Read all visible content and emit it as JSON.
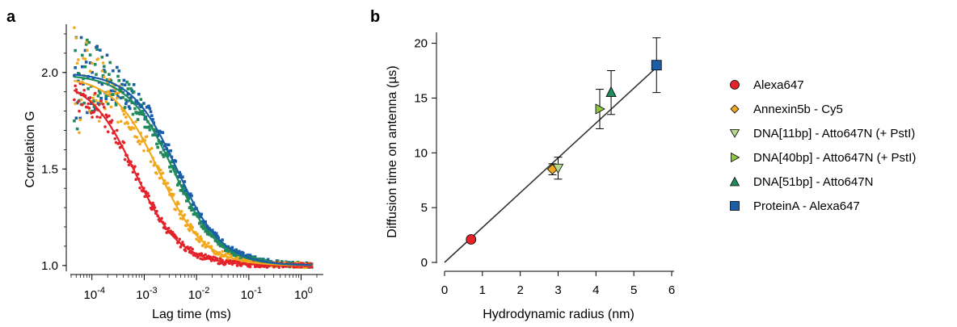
{
  "panel_a": {
    "letter": "a",
    "xlabel": "Lag time (ms)",
    "ylabel": "Correlation G",
    "xticks": [
      {
        "base": "10",
        "exp": "-4"
      },
      {
        "base": "10",
        "exp": "-3"
      },
      {
        "base": "10",
        "exp": "-2"
      },
      {
        "base": "10",
        "exp": "-1"
      },
      {
        "base": "10",
        "exp": "0"
      }
    ],
    "yticks": [
      "1.0",
      "1.5",
      "2.0"
    ]
  },
  "panel_b": {
    "letter": "b",
    "xlabel": "Hydrodynamic radius (nm)",
    "ylabel": "Diffusion time on antenna (µs)",
    "xticks": [
      "0",
      "1",
      "2",
      "3",
      "4",
      "5",
      "6"
    ],
    "yticks": [
      "0",
      "5",
      "10",
      "15",
      "20"
    ]
  },
  "chart_data": [
    {
      "type": "line",
      "xlabel": "Lag time (ms)",
      "ylabel": "Correlation G",
      "xscale": "log",
      "xlim": [
        4e-05,
        2
      ],
      "ylim": [
        0.97,
        2.25
      ],
      "grid": false,
      "series": [
        {
          "color": "#e3222a",
          "amplitude": 0.97,
          "tau": 0.00066,
          "offset": 1.0
        },
        {
          "color": "#f2a81c",
          "amplitude": 0.98,
          "tau": 0.0019,
          "offset": 1.0
        },
        {
          "color": "#1f8a5b",
          "amplitude": 0.99,
          "tau": 0.0036,
          "offset": 1.0
        },
        {
          "color": "#1a5ea8",
          "amplitude": 1.0,
          "tau": 0.0042,
          "offset": 1.0
        }
      ]
    },
    {
      "type": "scatter",
      "xlabel": "Hydrodynamic radius (nm)",
      "ylabel": "Diffusion time on antenna (µs)",
      "xlim": [
        0,
        6
      ],
      "ylim": [
        0,
        21
      ],
      "grid": false,
      "legend_position": "right",
      "series": [
        {
          "name": "Alexa647",
          "marker": "circle",
          "color": "#e3222a",
          "x": 0.7,
          "y": 2.1,
          "err": 0
        },
        {
          "name": "Annexin5b - Cy5",
          "marker": "diamond",
          "color": "#f2a81c",
          "x": 2.85,
          "y": 8.5,
          "err": 0.5
        },
        {
          "name": "DNA[11bp] - Atto647N (+ PstI)",
          "marker": "triangle-down",
          "color": "#b7d98b",
          "x": 3.0,
          "y": 8.6,
          "err": 1.0
        },
        {
          "name": "DNA[40bp] - Atto647N (+ PstI)",
          "marker": "triangle-right",
          "color": "#8dc63f",
          "x": 4.1,
          "y": 14.0,
          "err": 1.8
        },
        {
          "name": "DNA[51bp] - Atto647N",
          "marker": "triangle-up",
          "color": "#1f8a5b",
          "x": 4.4,
          "y": 15.5,
          "err": 2.0
        },
        {
          "name": "ProteinA - Alexa647",
          "marker": "square",
          "color": "#1a5ea8",
          "x": 5.6,
          "y": 18.0,
          "err": 2.5
        }
      ],
      "fit_line": {
        "x": [
          0,
          5.6
        ],
        "y": [
          0,
          17.8
        ],
        "color": "#333333"
      }
    }
  ]
}
